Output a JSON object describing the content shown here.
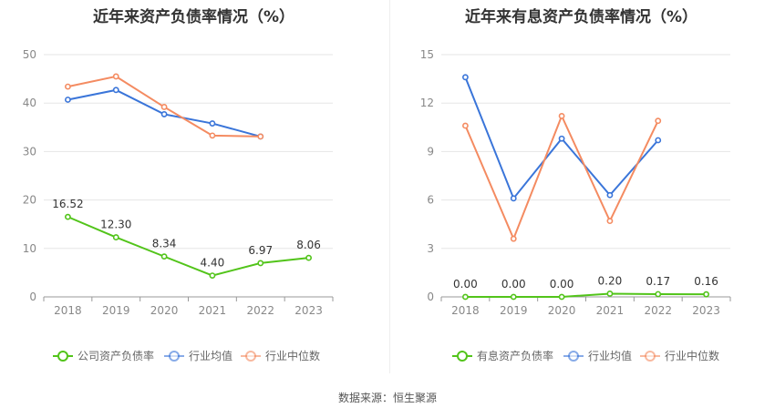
{
  "chart_data": [
    {
      "type": "line",
      "title": "近年来资产负债率情况（%）",
      "categories": [
        "2018",
        "2019",
        "2020",
        "2021",
        "2022",
        "2023"
      ],
      "ylim": [
        0,
        50
      ],
      "yticks": [
        0,
        10,
        20,
        30,
        40,
        50
      ],
      "grid": true,
      "legend_position": "bottom",
      "series": [
        {
          "name": "公司资产负债率",
          "color": "#52c41a",
          "values": [
            16.52,
            12.3,
            8.34,
            4.4,
            6.97,
            8.06
          ],
          "labels": [
            "16.52",
            "12.30",
            "8.34",
            "4.40",
            "6.97",
            "8.06"
          ]
        },
        {
          "name": "行业均值",
          "color": "#3a75d9",
          "values": [
            40.7,
            42.7,
            37.7,
            35.8,
            33.1,
            null
          ]
        },
        {
          "name": "行业中位数",
          "color": "#f48b61",
          "values": [
            43.4,
            45.5,
            39.2,
            33.3,
            33.1,
            null
          ]
        }
      ]
    },
    {
      "type": "line",
      "title": "近年来有息资产负债率情况（%）",
      "categories": [
        "2018",
        "2019",
        "2020",
        "2021",
        "2022",
        "2023"
      ],
      "ylim": [
        0,
        15
      ],
      "yticks": [
        0,
        3,
        6,
        9,
        12,
        15
      ],
      "grid": true,
      "legend_position": "bottom",
      "series": [
        {
          "name": "有息资产负债率",
          "color": "#52c41a",
          "values": [
            0.0,
            0.0,
            0.0,
            0.2,
            0.17,
            0.16
          ],
          "labels": [
            "0.00",
            "0.00",
            "0.00",
            "0.20",
            "0.17",
            "0.16"
          ]
        },
        {
          "name": "行业均值",
          "color": "#3a75d9",
          "values": [
            13.6,
            6.1,
            9.8,
            6.3,
            9.7,
            null
          ]
        },
        {
          "name": "行业中位数",
          "color": "#f48b61",
          "values": [
            10.6,
            3.6,
            11.2,
            4.7,
            10.9,
            null
          ]
        }
      ]
    }
  ],
  "footer": {
    "source": "数据来源：恒生聚源"
  }
}
